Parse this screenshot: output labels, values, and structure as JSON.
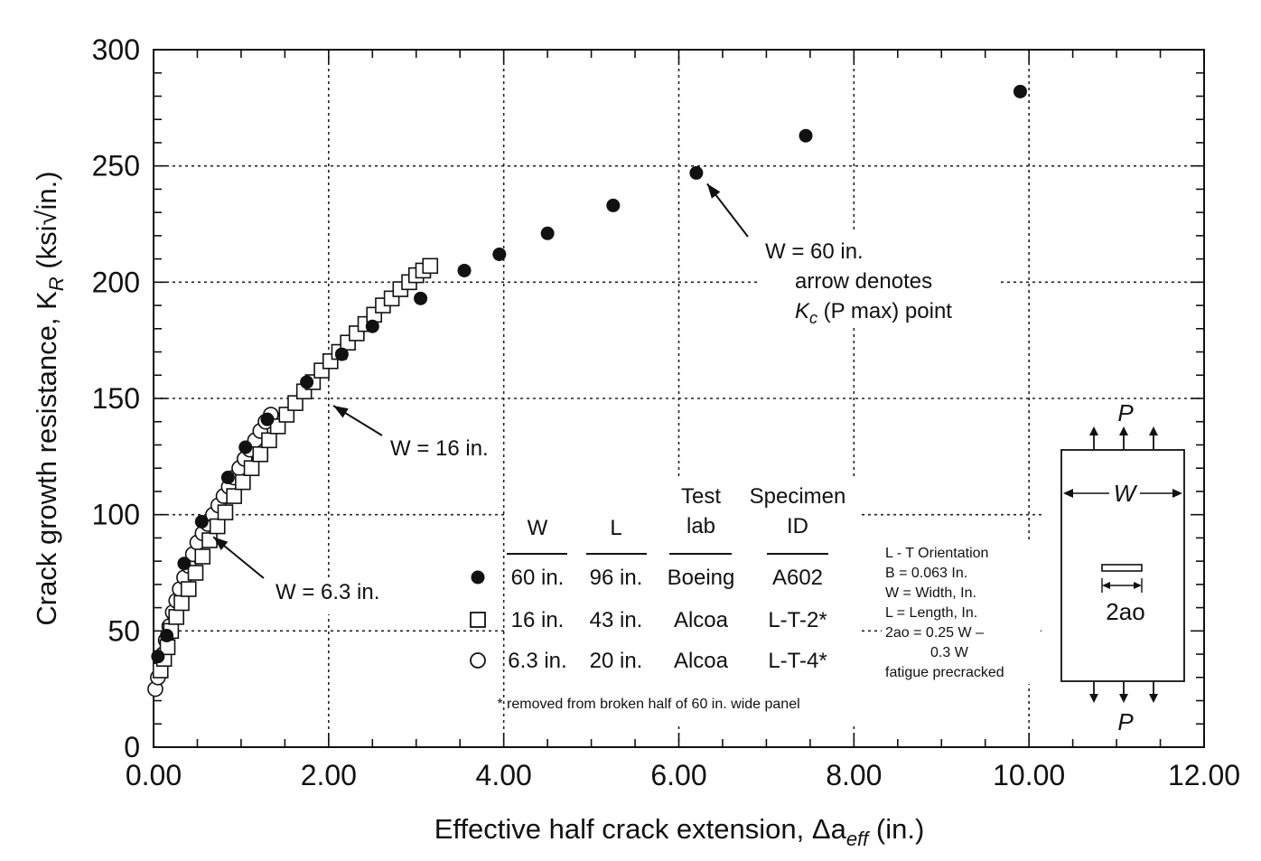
{
  "chart_data": {
    "type": "scatter",
    "xlabel": "Effective half crack extension, Δa",
    "xlabel_sub": "eff",
    "xlabel_unit": " (in.)",
    "ylabel": "Crack growth resistance, K",
    "ylabel_sub": "R",
    "ylabel_unit": " (ksi√in.)",
    "xlim": [
      0,
      12
    ],
    "ylim": [
      0,
      300
    ],
    "x_ticks": [
      "0.00",
      "2.00",
      "4.00",
      "6.00",
      "8.00",
      "10.00",
      "12.00"
    ],
    "y_ticks": [
      "0",
      "50",
      "100",
      "150",
      "200",
      "250",
      "300"
    ],
    "grid": "dotted, major ticks",
    "series": [
      {
        "marker": "filled-circle",
        "x": [
          0.05,
          0.15,
          0.35,
          0.55,
          0.85,
          1.05,
          1.3,
          1.75,
          2.15,
          2.5,
          3.05,
          3.55,
          3.95,
          4.5,
          5.25,
          6.2,
          7.45,
          9.9
        ],
        "y": [
          39,
          48,
          79,
          97,
          116,
          129,
          141,
          157,
          169,
          181,
          193,
          205,
          212,
          221,
          233,
          247,
          263,
          282
        ]
      },
      {
        "marker": "open-square",
        "x": [
          0.08,
          0.12,
          0.16,
          0.2,
          0.26,
          0.32,
          0.4,
          0.48,
          0.56,
          0.64,
          0.73,
          0.82,
          0.92,
          1.02,
          1.12,
          1.22,
          1.32,
          1.42,
          1.52,
          1.62,
          1.72,
          1.82,
          1.92,
          2.02,
          2.12,
          2.22,
          2.32,
          2.42,
          2.52,
          2.62,
          2.72,
          2.82,
          2.92,
          3.0,
          3.08,
          3.16
        ],
        "y": [
          33,
          38,
          43,
          50,
          56,
          62,
          68,
          75,
          82,
          89,
          95,
          101,
          108,
          114,
          120,
          126,
          132,
          138,
          143,
          148,
          153,
          157,
          162,
          166,
          170,
          174,
          178,
          182,
          186,
          190,
          193,
          197,
          200,
          203,
          205,
          207
        ]
      },
      {
        "marker": "open-circle",
        "x": [
          0.02,
          0.05,
          0.08,
          0.11,
          0.14,
          0.18,
          0.22,
          0.26,
          0.3,
          0.35,
          0.4,
          0.45,
          0.5,
          0.56,
          0.62,
          0.68,
          0.74,
          0.8,
          0.86,
          0.92,
          0.98,
          1.04,
          1.1,
          1.16,
          1.22,
          1.28,
          1.34
        ],
        "y": [
          25,
          30,
          35,
          40,
          46,
          52,
          58,
          63,
          68,
          73,
          78,
          83,
          88,
          92,
          96,
          100,
          104,
          108,
          112,
          116,
          120,
          124,
          128,
          132,
          136,
          140,
          143
        ]
      }
    ],
    "annotations": [
      {
        "id": "w60",
        "lines": [
          "W = 60 in.",
          "arrow denotes",
          "K",
          "c",
          " (P max) point"
        ],
        "target": [
          6.2,
          247
        ]
      },
      {
        "id": "w16",
        "text": "W = 16 in.",
        "target": [
          1.95,
          150
        ]
      },
      {
        "id": "w63",
        "text": "W = 6.3 in.",
        "target": [
          0.6,
          92
        ]
      }
    ],
    "legend": {
      "headers": [
        "W",
        "L",
        "Test",
        "lab",
        "Specimen",
        "ID"
      ],
      "rows": [
        {
          "marker": "filled-circle",
          "w": "60 in.",
          "l": "96 in.",
          "lab": "Boeing",
          "id": "A602"
        },
        {
          "marker": "open-square",
          "w": "16 in.",
          "l": "43 in.",
          "lab": "Alcoa",
          "id": "L-T-2*"
        },
        {
          "marker": "open-circle",
          "w": "6.3 in.",
          "l": "20 in.",
          "lab": "Alcoa",
          "id": "L-T-4*"
        }
      ],
      "footnote": "* removed from broken half of 60 in. wide panel"
    },
    "notes": [
      "L - T Orientation",
      "B = 0.063 In.",
      "W = Width, In.",
      "L = Length, In.",
      "2ao = 0.25 W –",
      "0.3 W",
      "fatigue precracked"
    ],
    "specimen": {
      "load": "P",
      "width": "W",
      "crack": "2ao"
    }
  }
}
